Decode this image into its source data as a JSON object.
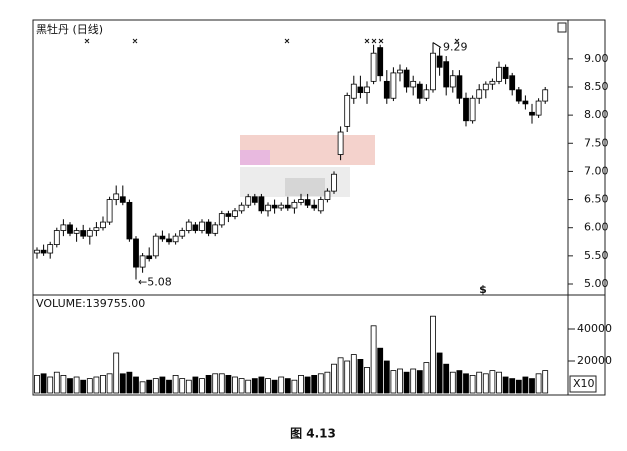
{
  "chart_data": [
    {
      "type": "candlestick",
      "title": "黑牡丹 (日线)",
      "low_label": "←5.08",
      "high_label": "9.29",
      "event_marker": "$",
      "up_color": "#ffffff",
      "down_color": "#000000",
      "ylim": [
        4.84,
        9.69
      ],
      "yticks": [
        {
          "value": 9.0,
          "label": "9.00"
        },
        {
          "value": 8.5,
          "label": "8.50"
        },
        {
          "value": 8.0,
          "label": "8.00"
        },
        {
          "value": 7.5,
          "label": "7.50"
        },
        {
          "value": 7.0,
          "label": "7.00"
        },
        {
          "value": 6.5,
          "label": "6.50"
        },
        {
          "value": 6.0,
          "label": "6.00"
        },
        {
          "value": 5.5,
          "label": "5.50"
        },
        {
          "value": 5.0,
          "label": "5.00"
        }
      ],
      "open": [
        5.55,
        5.6,
        5.55,
        5.7,
        5.95,
        6.05,
        5.9,
        5.95,
        5.85,
        5.95,
        6.0,
        6.1,
        6.5,
        6.55,
        6.45,
        5.8,
        5.3,
        5.5,
        5.5,
        5.85,
        5.8,
        5.75,
        5.85,
        5.95,
        6.05,
        5.95,
        6.1,
        5.9,
        6.05,
        6.25,
        6.2,
        6.3,
        6.4,
        6.55,
        6.55,
        6.3,
        6.4,
        6.35,
        6.4,
        6.35,
        6.45,
        6.5,
        6.4,
        6.3,
        6.5,
        6.65,
        7.3,
        7.8,
        8.3,
        8.5,
        8.4,
        8.6,
        9.2,
        8.6,
        8.3,
        8.75,
        8.8,
        8.5,
        8.55,
        8.3,
        8.45,
        9.05,
        8.95,
        8.5,
        8.7,
        8.3,
        7.9,
        8.3,
        8.45,
        8.55,
        8.6,
        8.85,
        8.7,
        8.45,
        8.25,
        8.05,
        8.0,
        8.25
      ],
      "high": [
        5.65,
        5.7,
        5.75,
        6.0,
        6.15,
        6.1,
        6.0,
        6.05,
        6.0,
        6.1,
        6.2,
        6.55,
        6.75,
        6.75,
        6.5,
        5.85,
        5.55,
        5.65,
        5.9,
        5.95,
        5.9,
        5.9,
        6.0,
        6.15,
        6.1,
        6.15,
        6.15,
        6.1,
        6.3,
        6.3,
        6.35,
        6.45,
        6.6,
        6.6,
        6.6,
        6.45,
        6.5,
        6.45,
        6.55,
        6.5,
        6.6,
        6.6,
        6.5,
        6.55,
        6.7,
        7.0,
        7.8,
        8.4,
        8.7,
        8.7,
        8.6,
        9.25,
        9.25,
        8.8,
        8.85,
        8.9,
        8.85,
        8.7,
        8.6,
        8.55,
        9.29,
        9.2,
        9.05,
        8.8,
        8.8,
        8.4,
        8.35,
        8.55,
        8.6,
        8.65,
        8.95,
        8.9,
        8.75,
        8.5,
        8.35,
        8.2,
        8.3,
        8.5
      ],
      "low": [
        5.45,
        5.5,
        5.45,
        5.65,
        5.85,
        5.85,
        5.75,
        5.8,
        5.7,
        5.85,
        5.95,
        6.05,
        6.4,
        6.4,
        5.75,
        5.08,
        5.2,
        5.4,
        5.45,
        5.75,
        5.7,
        5.7,
        5.8,
        5.9,
        5.9,
        5.9,
        5.85,
        5.85,
        6.0,
        6.1,
        6.15,
        6.25,
        6.35,
        6.4,
        6.25,
        6.2,
        6.25,
        6.3,
        6.3,
        6.25,
        6.4,
        6.35,
        6.3,
        6.25,
        6.45,
        6.6,
        7.2,
        7.7,
        8.2,
        8.3,
        8.2,
        8.55,
        8.6,
        8.2,
        8.25,
        8.6,
        8.4,
        8.35,
        8.2,
        8.25,
        8.4,
        8.7,
        8.35,
        8.4,
        8.2,
        7.8,
        7.85,
        8.2,
        8.3,
        8.45,
        8.55,
        8.55,
        8.35,
        8.2,
        8.1,
        7.85,
        7.95,
        8.2
      ],
      "close": [
        5.6,
        5.55,
        5.7,
        5.95,
        6.05,
        5.9,
        5.95,
        5.85,
        5.95,
        6.0,
        6.1,
        6.5,
        6.6,
        6.45,
        5.8,
        5.3,
        5.5,
        5.45,
        5.85,
        5.8,
        5.75,
        5.85,
        5.95,
        6.1,
        5.95,
        6.1,
        5.9,
        6.05,
        6.25,
        6.2,
        6.3,
        6.4,
        6.55,
        6.45,
        6.3,
        6.4,
        6.35,
        6.4,
        6.35,
        6.45,
        6.5,
        6.4,
        6.35,
        6.5,
        6.65,
        6.95,
        7.7,
        8.35,
        8.55,
        8.4,
        8.5,
        9.1,
        8.7,
        8.3,
        8.75,
        8.8,
        8.5,
        8.6,
        8.3,
        8.45,
        9.1,
        8.85,
        8.5,
        8.7,
        8.3,
        7.9,
        8.3,
        8.45,
        8.55,
        8.6,
        8.85,
        8.65,
        8.45,
        8.25,
        8.2,
        8.0,
        8.25,
        8.45
      ]
    },
    {
      "type": "bar",
      "title": "VOLUME:139755.00",
      "multiplier_label": "X10",
      "ylim": [
        0,
        60000
      ],
      "yticks": [
        40000,
        20000
      ],
      "values": [
        11000,
        12000,
        10000,
        13000,
        11000,
        9000,
        10000,
        8000,
        9000,
        10000,
        11000,
        12000,
        25000,
        12000,
        13000,
        10000,
        7000,
        8000,
        9000,
        10000,
        8000,
        11000,
        9000,
        8000,
        10000,
        9000,
        11000,
        12000,
        12000,
        11000,
        10000,
        9000,
        8000,
        9000,
        10000,
        9000,
        8000,
        10000,
        9000,
        8000,
        11000,
        10000,
        11000,
        12000,
        13000,
        18000,
        22000,
        20000,
        24000,
        21000,
        16000,
        42000,
        28000,
        20000,
        14000,
        15000,
        13000,
        15000,
        14000,
        19000,
        48000,
        25000,
        18000,
        13000,
        14000,
        12000,
        11000,
        13000,
        12000,
        14000,
        13000,
        10000,
        9000,
        8000,
        10000,
        9000,
        12000,
        14000
      ]
    }
  ],
  "caption": "图 4.13"
}
